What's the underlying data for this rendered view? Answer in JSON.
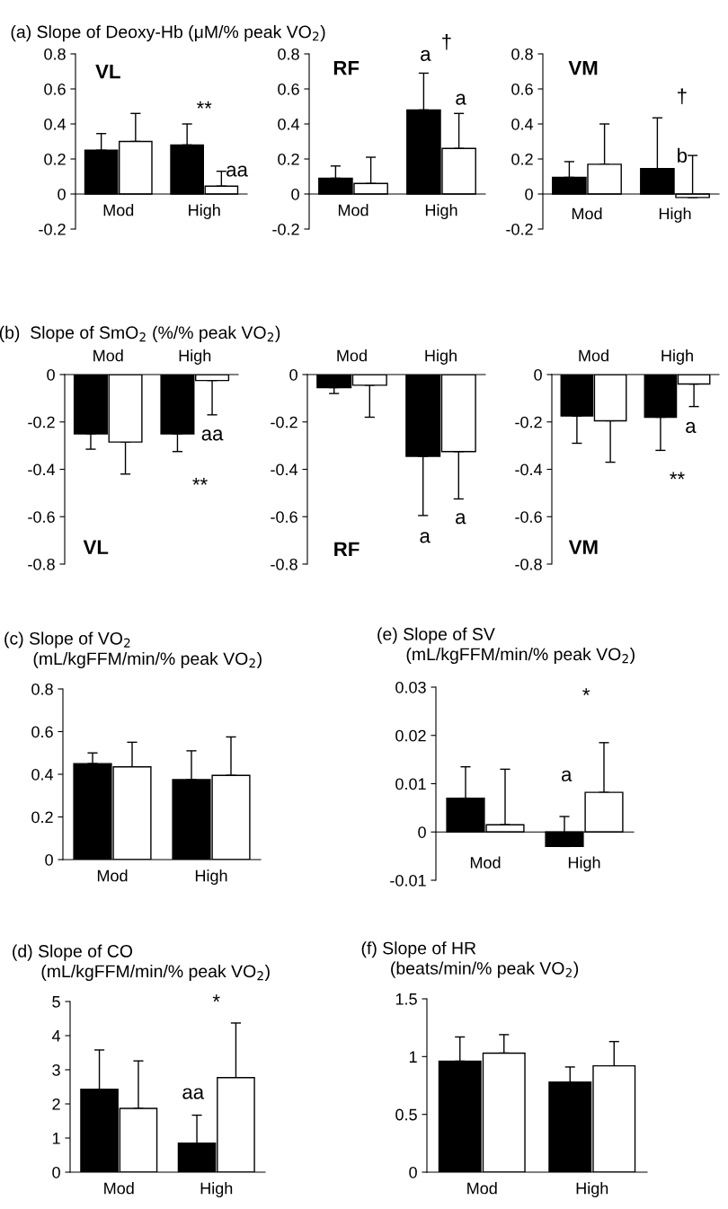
{
  "chart_data": [
    {
      "type": "bar",
      "title": "(a) Slope of Deoxy-Hb (μM/% peak VO$_{2}$)",
      "categories": [
        "Mod",
        "High"
      ],
      "ylim": [
        -0.2,
        0.8
      ],
      "yticks": [
        -0.2,
        0,
        0.2,
        0.4,
        0.6,
        0.8
      ],
      "series": [
        {
          "color": "#000000",
          "values": [
            0.25,
            0.28
          ],
          "errors": [
            [
              0.25,
              0.345
            ],
            [
              0.28,
              0.4
            ]
          ]
        },
        {
          "color": "#ffffff",
          "values": [
            0.3,
            0.045
          ],
          "errors": [
            [
              0.3,
              0.46
            ],
            [
              0.045,
              0.13
            ]
          ]
        }
      ],
      "annotations": [
        "VL",
        "**",
        "aa"
      ]
    },
    {
      "type": "bar",
      "categories": [
        "Mod",
        "High"
      ],
      "ylim": [
        -0.2,
        0.8
      ],
      "yticks": [
        -0.2,
        0,
        0.2,
        0.4,
        0.6,
        0.8
      ],
      "series": [
        {
          "color": "#000000",
          "values": [
            0.09,
            0.48
          ],
          "errors": [
            [
              0.09,
              0.16
            ],
            [
              0.48,
              0.69
            ]
          ]
        },
        {
          "color": "#ffffff",
          "values": [
            0.06,
            0.26
          ],
          "errors": [
            [
              0.06,
              0.21
            ],
            [
              0.26,
              0.46
            ]
          ]
        }
      ],
      "annotations": [
        "RF",
        "a",
        "†",
        "a"
      ]
    },
    {
      "type": "bar",
      "categories": [
        "Mod",
        "High"
      ],
      "ylim": [
        -0.2,
        0.8
      ],
      "yticks": [
        -0.2,
        0,
        0.2,
        0.4,
        0.6,
        0.8
      ],
      "series": [
        {
          "color": "#000000",
          "values": [
            0.095,
            0.145
          ],
          "errors": [
            [
              0.095,
              0.185
            ],
            [
              0.145,
              0.435
            ]
          ]
        },
        {
          "color": "#ffffff",
          "values": [
            0.17,
            -0.02
          ],
          "errors": [
            [
              0.17,
              0.4
            ],
            [
              -0.02,
              0.22
            ]
          ]
        }
      ],
      "annotations": [
        "VM",
        "†",
        "b"
      ]
    },
    {
      "type": "bar",
      "title": "(b)  Slope of SmO$_{2}$ (%/% peak VO$_{2}$)",
      "categories": [
        "Mod",
        "High"
      ],
      "ylim": [
        -0.8,
        0
      ],
      "yticks": [
        -0.8,
        -0.6,
        -0.4,
        -0.2,
        0
      ],
      "series": [
        {
          "color": "#000000",
          "values": [
            -0.25,
            -0.25
          ],
          "errors": [
            [
              -0.315,
              -0.25
            ],
            [
              -0.325,
              -0.25
            ]
          ]
        },
        {
          "color": "#ffffff",
          "values": [
            -0.285,
            -0.025
          ],
          "errors": [
            [
              -0.42,
              -0.285
            ],
            [
              -0.17,
              -0.025
            ]
          ]
        }
      ],
      "annotations": [
        "VL",
        "aa",
        "**"
      ]
    },
    {
      "type": "bar",
      "categories": [
        "Mod",
        "High"
      ],
      "ylim": [
        -0.8,
        0
      ],
      "yticks": [
        -0.8,
        -0.6,
        -0.4,
        -0.2,
        0
      ],
      "series": [
        {
          "color": "#000000",
          "values": [
            -0.055,
            -0.345
          ],
          "errors": [
            [
              -0.08,
              -0.055
            ],
            [
              -0.595,
              -0.345
            ]
          ]
        },
        {
          "color": "#ffffff",
          "values": [
            -0.045,
            -0.325
          ],
          "errors": [
            [
              -0.18,
              -0.045
            ],
            [
              -0.525,
              -0.325
            ]
          ]
        }
      ],
      "annotations": [
        "RF",
        "a",
        "a"
      ]
    },
    {
      "type": "bar",
      "categories": [
        "Mod",
        "High"
      ],
      "ylim": [
        -0.8,
        0
      ],
      "yticks": [
        -0.8,
        -0.6,
        -0.4,
        -0.2,
        0
      ],
      "series": [
        {
          "color": "#000000",
          "values": [
            -0.175,
            -0.18
          ],
          "errors": [
            [
              -0.29,
              -0.175
            ],
            [
              -0.32,
              -0.18
            ]
          ]
        },
        {
          "color": "#ffffff",
          "values": [
            -0.195,
            -0.04
          ],
          "errors": [
            [
              -0.37,
              -0.195
            ],
            [
              -0.135,
              -0.04
            ]
          ]
        }
      ],
      "annotations": [
        "VM",
        "a",
        "**"
      ]
    },
    {
      "type": "bar",
      "title": "(c) Slope of VO$_{2}$\n      (mL/kgFFM/min/% peak VO$_{2}$)",
      "categories": [
        "Mod",
        "High"
      ],
      "ylim": [
        0,
        0.8
      ],
      "yticks": [
        0,
        0.2,
        0.4,
        0.6,
        0.8
      ],
      "series": [
        {
          "color": "#000000",
          "values": [
            0.45,
            0.375
          ],
          "errors": [
            [
              0.45,
              0.5
            ],
            [
              0.375,
              0.51
            ]
          ]
        },
        {
          "color": "#ffffff",
          "values": [
            0.435,
            0.395
          ],
          "errors": [
            [
              0.435,
              0.55
            ],
            [
              0.395,
              0.575
            ]
          ]
        }
      ]
    },
    {
      "type": "bar",
      "title": "(e) Slope of SV\n      (mL/kgFFM/min/% peak VO$_{2}$)",
      "categories": [
        "Mod",
        "High"
      ],
      "ylim": [
        -0.01,
        0.03
      ],
      "yticks": [
        -0.01,
        0,
        0.01,
        0.02,
        0.03
      ],
      "series": [
        {
          "color": "#000000",
          "values": [
            0.007,
            -0.003
          ],
          "errors": [
            [
              0.007,
              0.0135
            ],
            [
              -0.003,
              0.0032
            ]
          ]
        },
        {
          "color": "#ffffff",
          "values": [
            0.0015,
            0.0082
          ],
          "errors": [
            [
              0.0015,
              0.013
            ],
            [
              0.0082,
              0.0185
            ]
          ]
        }
      ],
      "annotations": [
        "a",
        "*"
      ]
    },
    {
      "type": "bar",
      "title": "(d) Slope of CO\n      (mL/kgFFM/min/% peak VO$_{2}$)",
      "categories": [
        "Mod",
        "High"
      ],
      "ylim": [
        0,
        5
      ],
      "yticks": [
        0,
        1,
        2,
        3,
        4,
        5
      ],
      "series": [
        {
          "color": "#000000",
          "values": [
            2.43,
            0.85
          ],
          "errors": [
            [
              2.43,
              3.58
            ],
            [
              0.85,
              1.67
            ]
          ]
        },
        {
          "color": "#ffffff",
          "values": [
            1.87,
            2.77
          ],
          "errors": [
            [
              1.87,
              3.26
            ],
            [
              2.77,
              4.37
            ]
          ]
        }
      ],
      "annotations": [
        "aa",
        "*"
      ]
    },
    {
      "type": "bar",
      "title": "(f) Slope of HR\n      (beats/min/% peak VO$_{2}$)",
      "categories": [
        "Mod",
        "High"
      ],
      "ylim": [
        0,
        1.5
      ],
      "yticks": [
        0,
        0.5,
        1,
        1.5
      ],
      "series": [
        {
          "color": "#000000",
          "values": [
            0.96,
            0.78
          ],
          "errors": [
            [
              0.96,
              1.17
            ],
            [
              0.78,
              0.91
            ]
          ]
        },
        {
          "color": "#ffffff",
          "values": [
            1.03,
            0.92
          ],
          "errors": [
            [
              1.03,
              1.19
            ],
            [
              0.92,
              1.13
            ]
          ]
        }
      ]
    }
  ]
}
